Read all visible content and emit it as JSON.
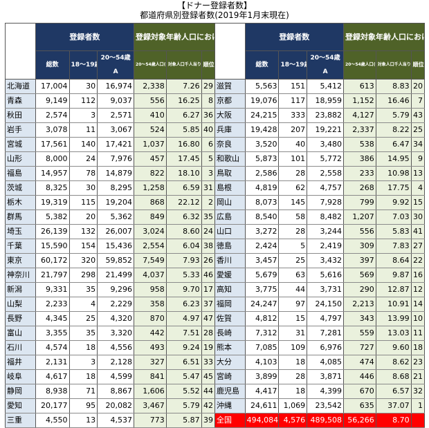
{
  "title": "【ドナー登録者数】",
  "subtitle": "都道府県別登録者数(2019年1月末現在)",
  "headers": {
    "registrants": "登録者数",
    "target_ratio": "登録対象年齢人口における登録者数",
    "total": "総数",
    "age_18_19": "18～19歳",
    "age_20_54": "20～54歳\nA",
    "pop_20_54": "20～54歳人口(千人)B",
    "per_1000": "対象人口千人当りにおける登録者(人)A/B",
    "rank": "順位"
  },
  "left_rows": [
    {
      "pref": "北海道",
      "total": "17,004",
      "a1819": "30",
      "a2054": "16,974",
      "pop": "2,338",
      "per": "7.26",
      "rank": "29"
    },
    {
      "pref": "青森",
      "total": "9,149",
      "a1819": "112",
      "a2054": "9,037",
      "pop": "556",
      "per": "16.25",
      "rank": "8"
    },
    {
      "pref": "秋田",
      "total": "2,574",
      "a1819": "3",
      "a2054": "2,571",
      "pop": "410",
      "per": "6.27",
      "rank": "36"
    },
    {
      "pref": "岩手",
      "total": "3,078",
      "a1819": "11",
      "a2054": "3,067",
      "pop": "524",
      "per": "5.85",
      "rank": "40"
    },
    {
      "pref": "宮城",
      "total": "17,561",
      "a1819": "140",
      "a2054": "17,421",
      "pop": "1,037",
      "per": "16.80",
      "rank": "6"
    },
    {
      "pref": "山形",
      "total": "8,000",
      "a1819": "24",
      "a2054": "7,976",
      "pop": "457",
      "per": "17.45",
      "rank": "5"
    },
    {
      "pref": "福島",
      "total": "14,957",
      "a1819": "78",
      "a2054": "14,879",
      "pop": "822",
      "per": "18.10",
      "rank": "3"
    },
    {
      "pref": "茨城",
      "total": "8,325",
      "a1819": "30",
      "a2054": "8,295",
      "pop": "1,258",
      "per": "6.59",
      "rank": "31"
    },
    {
      "pref": "栃木",
      "total": "19,319",
      "a1819": "115",
      "a2054": "19,204",
      "pop": "868",
      "per": "22.12",
      "rank": "2"
    },
    {
      "pref": "群馬",
      "total": "5,382",
      "a1819": "20",
      "a2054": "5,362",
      "pop": "849",
      "per": "6.32",
      "rank": "35"
    },
    {
      "pref": "埼玉",
      "total": "26,139",
      "a1819": "132",
      "a2054": "26,007",
      "pop": "3,024",
      "per": "8.60",
      "rank": "24"
    },
    {
      "pref": "千葉",
      "total": "15,590",
      "a1819": "154",
      "a2054": "15,436",
      "pop": "2,554",
      "per": "6.04",
      "rank": "38"
    },
    {
      "pref": "東京",
      "total": "60,172",
      "a1819": "320",
      "a2054": "59,852",
      "pop": "7,549",
      "per": "7.93",
      "rank": "26"
    },
    {
      "pref": "神奈川",
      "total": "21,797",
      "a1819": "298",
      "a2054": "21,499",
      "pop": "4,037",
      "per": "5.33",
      "rank": "46"
    },
    {
      "pref": "新潟",
      "total": "9,331",
      "a1819": "35",
      "a2054": "9,296",
      "pop": "958",
      "per": "9.70",
      "rank": "17"
    },
    {
      "pref": "山梨",
      "total": "2,233",
      "a1819": "4",
      "a2054": "2,229",
      "pop": "358",
      "per": "6.23",
      "rank": "37"
    },
    {
      "pref": "長野",
      "total": "4,345",
      "a1819": "25",
      "a2054": "4,320",
      "pop": "870",
      "per": "4.97",
      "rank": "47"
    },
    {
      "pref": "富山",
      "total": "3,355",
      "a1819": "35",
      "a2054": "3,320",
      "pop": "442",
      "per": "7.51",
      "rank": "28"
    },
    {
      "pref": "石川",
      "total": "4,574",
      "a1819": "18",
      "a2054": "4,556",
      "pop": "493",
      "per": "9.24",
      "rank": "19"
    },
    {
      "pref": "福井",
      "total": "2,131",
      "a1819": "3",
      "a2054": "2,128",
      "pop": "327",
      "per": "6.51",
      "rank": "33"
    },
    {
      "pref": "岐阜",
      "total": "4,617",
      "a1819": "18",
      "a2054": "4,599",
      "pop": "841",
      "per": "5.47",
      "rank": "45"
    },
    {
      "pref": "静岡",
      "total": "8,938",
      "a1819": "71",
      "a2054": "8,867",
      "pop": "1,606",
      "per": "5.52",
      "rank": "44"
    },
    {
      "pref": "愛知",
      "total": "20,177",
      "a1819": "95",
      "a2054": "20,082",
      "pop": "3,467",
      "per": "5.79",
      "rank": "42"
    },
    {
      "pref": "三重",
      "total": "4,550",
      "a1819": "13",
      "a2054": "4,537",
      "pop": "773",
      "per": "5.87",
      "rank": "39"
    }
  ],
  "right_rows": [
    {
      "pref": "滋賀",
      "total": "5,563",
      "a1819": "151",
      "a2054": "5,412",
      "pop": "613",
      "per": "8.83",
      "rank": "20"
    },
    {
      "pref": "京都",
      "total": "19,076",
      "a1819": "117",
      "a2054": "18,959",
      "pop": "1,152",
      "per": "16.46",
      "rank": "7"
    },
    {
      "pref": "大阪",
      "total": "24,215",
      "a1819": "333",
      "a2054": "23,882",
      "pop": "4,127",
      "per": "5.79",
      "rank": "43"
    },
    {
      "pref": "兵庫",
      "total": "19,428",
      "a1819": "207",
      "a2054": "19,221",
      "pop": "2,337",
      "per": "8.22",
      "rank": "25"
    },
    {
      "pref": "奈良",
      "total": "3,520",
      "a1819": "40",
      "a2054": "3,480",
      "pop": "538",
      "per": "6.47",
      "rank": "34"
    },
    {
      "pref": "和歌山",
      "total": "5,873",
      "a1819": "101",
      "a2054": "5,772",
      "pop": "386",
      "per": "14.95",
      "rank": "9"
    },
    {
      "pref": "鳥取",
      "total": "2,586",
      "a1819": "28",
      "a2054": "2,558",
      "pop": "233",
      "per": "10.98",
      "rank": "13"
    },
    {
      "pref": "島根",
      "total": "4,819",
      "a1819": "62",
      "a2054": "4,757",
      "pop": "268",
      "per": "17.75",
      "rank": "4"
    },
    {
      "pref": "岡山",
      "total": "8,073",
      "a1819": "145",
      "a2054": "7,928",
      "pop": "799",
      "per": "9.92",
      "rank": "15"
    },
    {
      "pref": "広島",
      "total": "8,540",
      "a1819": "58",
      "a2054": "8,482",
      "pop": "1,207",
      "per": "7.03",
      "rank": "30"
    },
    {
      "pref": "山口",
      "total": "3,272",
      "a1819": "28",
      "a2054": "3,244",
      "pop": "556",
      "per": "5.83",
      "rank": "41"
    },
    {
      "pref": "徳島",
      "total": "2,424",
      "a1819": "5",
      "a2054": "2,419",
      "pop": "309",
      "per": "7.83",
      "rank": "27"
    },
    {
      "pref": "香川",
      "total": "3,457",
      "a1819": "25",
      "a2054": "3,432",
      "pop": "397",
      "per": "8.64",
      "rank": "22"
    },
    {
      "pref": "愛媛",
      "total": "5,679",
      "a1819": "63",
      "a2054": "5,616",
      "pop": "569",
      "per": "9.87",
      "rank": "16"
    },
    {
      "pref": "高知",
      "total": "3,775",
      "a1819": "44",
      "a2054": "3,731",
      "pop": "290",
      "per": "12.87",
      "rank": "12"
    },
    {
      "pref": "福岡",
      "total": "24,247",
      "a1819": "97",
      "a2054": "24,150",
      "pop": "2,213",
      "per": "10.91",
      "rank": "14"
    },
    {
      "pref": "佐賀",
      "total": "4,812",
      "a1819": "15",
      "a2054": "4,797",
      "pop": "343",
      "per": "13.99",
      "rank": "10"
    },
    {
      "pref": "長崎",
      "total": "7,312",
      "a1819": "31",
      "a2054": "7,281",
      "pop": "559",
      "per": "13.03",
      "rank": "11"
    },
    {
      "pref": "熊本",
      "total": "7,085",
      "a1819": "109",
      "a2054": "6,976",
      "pop": "727",
      "per": "9.60",
      "rank": "18"
    },
    {
      "pref": "大分",
      "total": "4,103",
      "a1819": "18",
      "a2054": "4,085",
      "pop": "474",
      "per": "8.62",
      "rank": "23"
    },
    {
      "pref": "宮崎",
      "total": "3,899",
      "a1819": "28",
      "a2054": "3,871",
      "pop": "446",
      "per": "8.68",
      "rank": "21"
    },
    {
      "pref": "鹿児島",
      "total": "4,417",
      "a1819": "18",
      "a2054": "4,399",
      "pop": "670",
      "per": "6.57",
      "rank": "32"
    },
    {
      "pref": "沖縄",
      "total": "24,611",
      "a1819": "1,069",
      "a2054": "23,542",
      "pop": "635",
      "per": "37.07",
      "rank": "1"
    },
    {
      "pref": "全国",
      "total": "494,084",
      "a1819": "4,576",
      "a2054": "489,508",
      "pop": "56,266",
      "per": "8.70",
      "rank": ""
    }
  ],
  "colors": {
    "header_navy": "#1f3864",
    "header_olive": "#4f6228",
    "pref_bg": "#dce6f1",
    "green_bg": "#eaf1dd",
    "total_red": "#ff0000"
  }
}
